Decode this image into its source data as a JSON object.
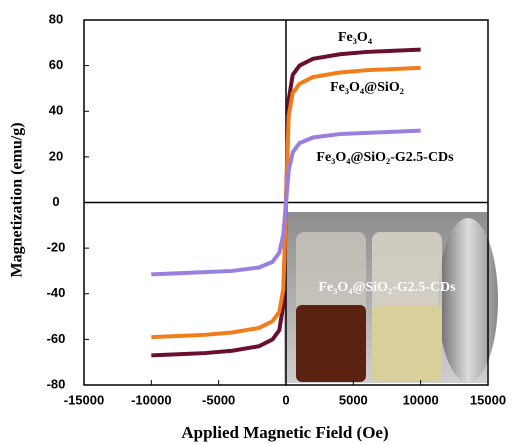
{
  "chart_data": {
    "type": "line",
    "xlabel": "Applied Magnetic Field (Oe)",
    "ylabel": "Magnetization (emu/g)",
    "x": [
      -10000,
      -8000,
      -6000,
      -4000,
      -2000,
      -1000,
      -500,
      -200,
      0,
      200,
      500,
      1000,
      2000,
      4000,
      6000,
      8000,
      10000
    ],
    "series": [
      {
        "name": "Fe₃O₄",
        "color": "#6b0f2e",
        "values": [
          -67,
          -66.5,
          -66,
          -65,
          -63,
          -60,
          -56,
          -45,
          0,
          45,
          56,
          60,
          63,
          65,
          66,
          66.5,
          67
        ]
      },
      {
        "name": "Fe₃O₄@SiO₂",
        "color": "#f07d1a",
        "values": [
          -59,
          -58.5,
          -58,
          -57,
          -55,
          -52,
          -48,
          -38,
          0,
          38,
          48,
          52,
          55,
          57,
          58,
          58.5,
          59
        ]
      },
      {
        "name": "Fe₃O₄@SiO₂-G2.5-CDs",
        "color": "#9b7fe0",
        "values": [
          -31.5,
          -31,
          -30.5,
          -30,
          -28.5,
          -26,
          -22,
          -14,
          0,
          14,
          22,
          26,
          28.5,
          30,
          30.5,
          31,
          31.5
        ]
      }
    ],
    "inset_label": "Fe₃O₄@SiO₂-G2.5-CDs",
    "xlim": [
      -15000,
      15000
    ],
    "xticks": [
      -15000,
      -10000,
      -5000,
      0,
      5000,
      10000,
      15000
    ],
    "ylim": [
      -80,
      80
    ],
    "yticks": [
      -80,
      -60,
      -40,
      -20,
      0,
      20,
      40,
      60,
      80
    ]
  }
}
